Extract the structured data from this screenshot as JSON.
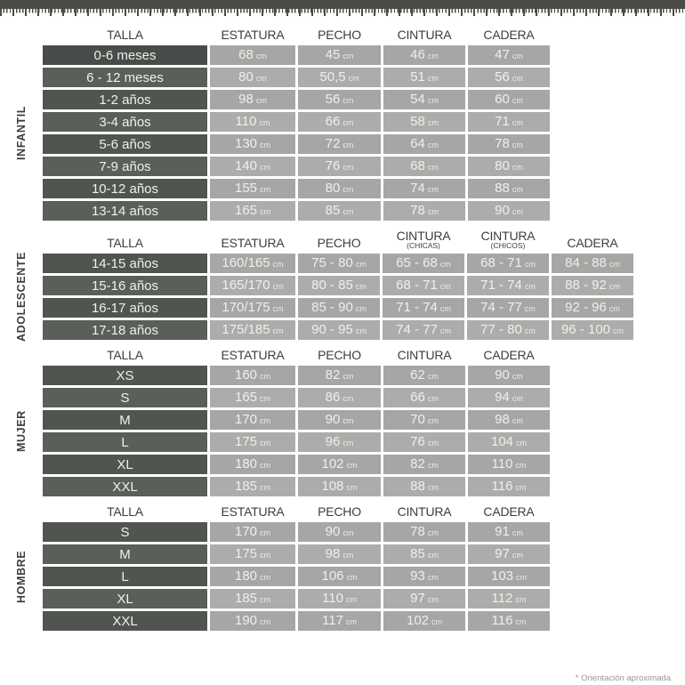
{
  "unit": "cm",
  "footnote": "* Orientación aproximada",
  "decor": {
    "top_edge_icon": "measuring-tape-ruler"
  },
  "colors": {
    "label_cell_odd": "#50564f",
    "label_cell_even": "#5a5f5a",
    "label_cell_first": "#474d48",
    "value_cell_odd": "#a5a7a4",
    "value_cell_even": "#abadaa",
    "header_text": "#3d3d3c",
    "cell_text": "#eef0ed",
    "ruler": "#4c4b48"
  },
  "sections": [
    {
      "id": "infantil",
      "label": "INFANTIL",
      "columns": [
        "TALLA",
        "ESTATURA",
        "PECHO",
        "CINTURA",
        "CADERA"
      ],
      "column_subs": [
        "",
        "",
        "",
        "",
        ""
      ],
      "rows": [
        {
          "talla": "0-6 meses",
          "values": [
            "68",
            "45",
            "46",
            "47"
          ]
        },
        {
          "talla": "6 - 12 meses",
          "values": [
            "80",
            "50,5",
            "51",
            "56"
          ]
        },
        {
          "talla": "1-2 años",
          "values": [
            "98",
            "56",
            "54",
            "60"
          ]
        },
        {
          "talla": "3-4 años",
          "values": [
            "110",
            "66",
            "58",
            "71"
          ]
        },
        {
          "talla": "5-6 años",
          "values": [
            "130",
            "72",
            "64",
            "78"
          ]
        },
        {
          "talla": "7-9 años",
          "values": [
            "140",
            "76",
            "68",
            "80"
          ]
        },
        {
          "talla": "10-12 años",
          "values": [
            "155",
            "80",
            "74",
            "88"
          ]
        },
        {
          "talla": "13-14 años",
          "values": [
            "165",
            "85",
            "78",
            "90"
          ]
        }
      ]
    },
    {
      "id": "adolescente",
      "label": "ADOLESCENTE",
      "columns": [
        "TALLA",
        "ESTATURA",
        "PECHO",
        "CINTURA",
        "CINTURA",
        "CADERA"
      ],
      "column_subs": [
        "",
        "",
        "",
        "(CHICAS)",
        "(CHICOS)",
        ""
      ],
      "rows": [
        {
          "talla": "14-15 años",
          "values": [
            "160/165",
            "75 - 80",
            "65 - 68",
            "68 - 71",
            "84 - 88"
          ]
        },
        {
          "talla": "15-16 años",
          "values": [
            "165/170",
            "80 - 85",
            "68 - 71",
            "71 - 74",
            "88 - 92"
          ]
        },
        {
          "talla": "16-17 años",
          "values": [
            "170/175",
            "85 - 90",
            "71 - 74",
            "74 - 77",
            "92 - 96"
          ]
        },
        {
          "talla": "17-18 años",
          "values": [
            "175/185",
            "90 - 95",
            "74 - 77",
            "77 - 80",
            "96 - 100"
          ]
        }
      ]
    },
    {
      "id": "mujer",
      "label": "MUJER",
      "columns": [
        "TALLA",
        "ESTATURA",
        "PECHO",
        "CINTURA",
        "CADERA"
      ],
      "column_subs": [
        "",
        "",
        "",
        "",
        ""
      ],
      "rows": [
        {
          "talla": "XS",
          "values": [
            "160",
            "82",
            "62",
            "90"
          ]
        },
        {
          "talla": "S",
          "values": [
            "165",
            "86",
            "66",
            "94"
          ]
        },
        {
          "talla": "M",
          "values": [
            "170",
            "90",
            "70",
            "98"
          ]
        },
        {
          "talla": "L",
          "values": [
            "175",
            "96",
            "76",
            "104"
          ]
        },
        {
          "talla": "XL",
          "values": [
            "180",
            "102",
            "82",
            "110"
          ]
        },
        {
          "talla": "XXL",
          "values": [
            "185",
            "108",
            "88",
            "116"
          ]
        }
      ]
    },
    {
      "id": "hombre",
      "label": "HOMBRE",
      "columns": [
        "TALLA",
        "ESTATURA",
        "PECHO",
        "CINTURA",
        "CADERA"
      ],
      "column_subs": [
        "",
        "",
        "",
        "",
        ""
      ],
      "rows": [
        {
          "talla": "S",
          "values": [
            "170",
            "90",
            "78",
            "91"
          ]
        },
        {
          "talla": "M",
          "values": [
            "175",
            "98",
            "85",
            "97"
          ]
        },
        {
          "talla": "L",
          "values": [
            "180",
            "106",
            "93",
            "103"
          ]
        },
        {
          "talla": "XL",
          "values": [
            "185",
            "110",
            "97",
            "112"
          ]
        },
        {
          "talla": "XXL",
          "values": [
            "190",
            "117",
            "102",
            "116"
          ]
        }
      ]
    }
  ]
}
